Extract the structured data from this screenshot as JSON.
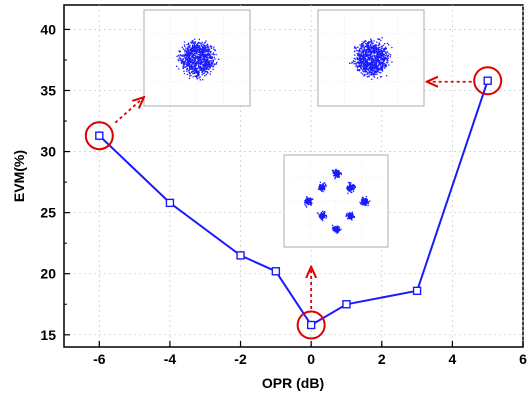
{
  "chart_data": {
    "type": "line",
    "xlabel": "OPR (dB)",
    "ylabel": "EVM(%)",
    "xlim": [
      -7,
      6
    ],
    "ylim": [
      14,
      42
    ],
    "xticks": [
      -6,
      -4,
      -2,
      0,
      2,
      4,
      6
    ],
    "yticks": [
      15,
      20,
      25,
      30,
      35,
      40
    ],
    "x_tick_labels": [
      "-6",
      "-4",
      "-2",
      "0",
      "2",
      "4",
      "6"
    ],
    "y_tick_labels": [
      "15",
      "20",
      "25",
      "30",
      "35",
      "40"
    ],
    "grid": true,
    "series": [
      {
        "color": "#1a1aff",
        "marker": "open-square",
        "x": [
          -6,
          -4,
          -2,
          -1,
          0,
          1,
          3,
          5
        ],
        "y": [
          31.3,
          25.8,
          21.5,
          20.2,
          15.8,
          17.5,
          18.6,
          35.8
        ]
      }
    ],
    "highlighted_points": [
      {
        "x": -6,
        "y": 31.3
      },
      {
        "x": 0,
        "y": 15.8
      },
      {
        "x": 5,
        "y": 35.8
      }
    ],
    "insets": [
      {
        "type": "constellation",
        "pattern": "diffuse",
        "linked_point_x": -6
      },
      {
        "type": "constellation",
        "pattern": "six-cluster",
        "linked_point_x": 0
      },
      {
        "type": "constellation",
        "pattern": "diffuse",
        "linked_point_x": 5
      }
    ],
    "colors": {
      "line": "#1a1aff",
      "highlight": "#e00000",
      "inset_dots": "#1a1aff"
    }
  }
}
